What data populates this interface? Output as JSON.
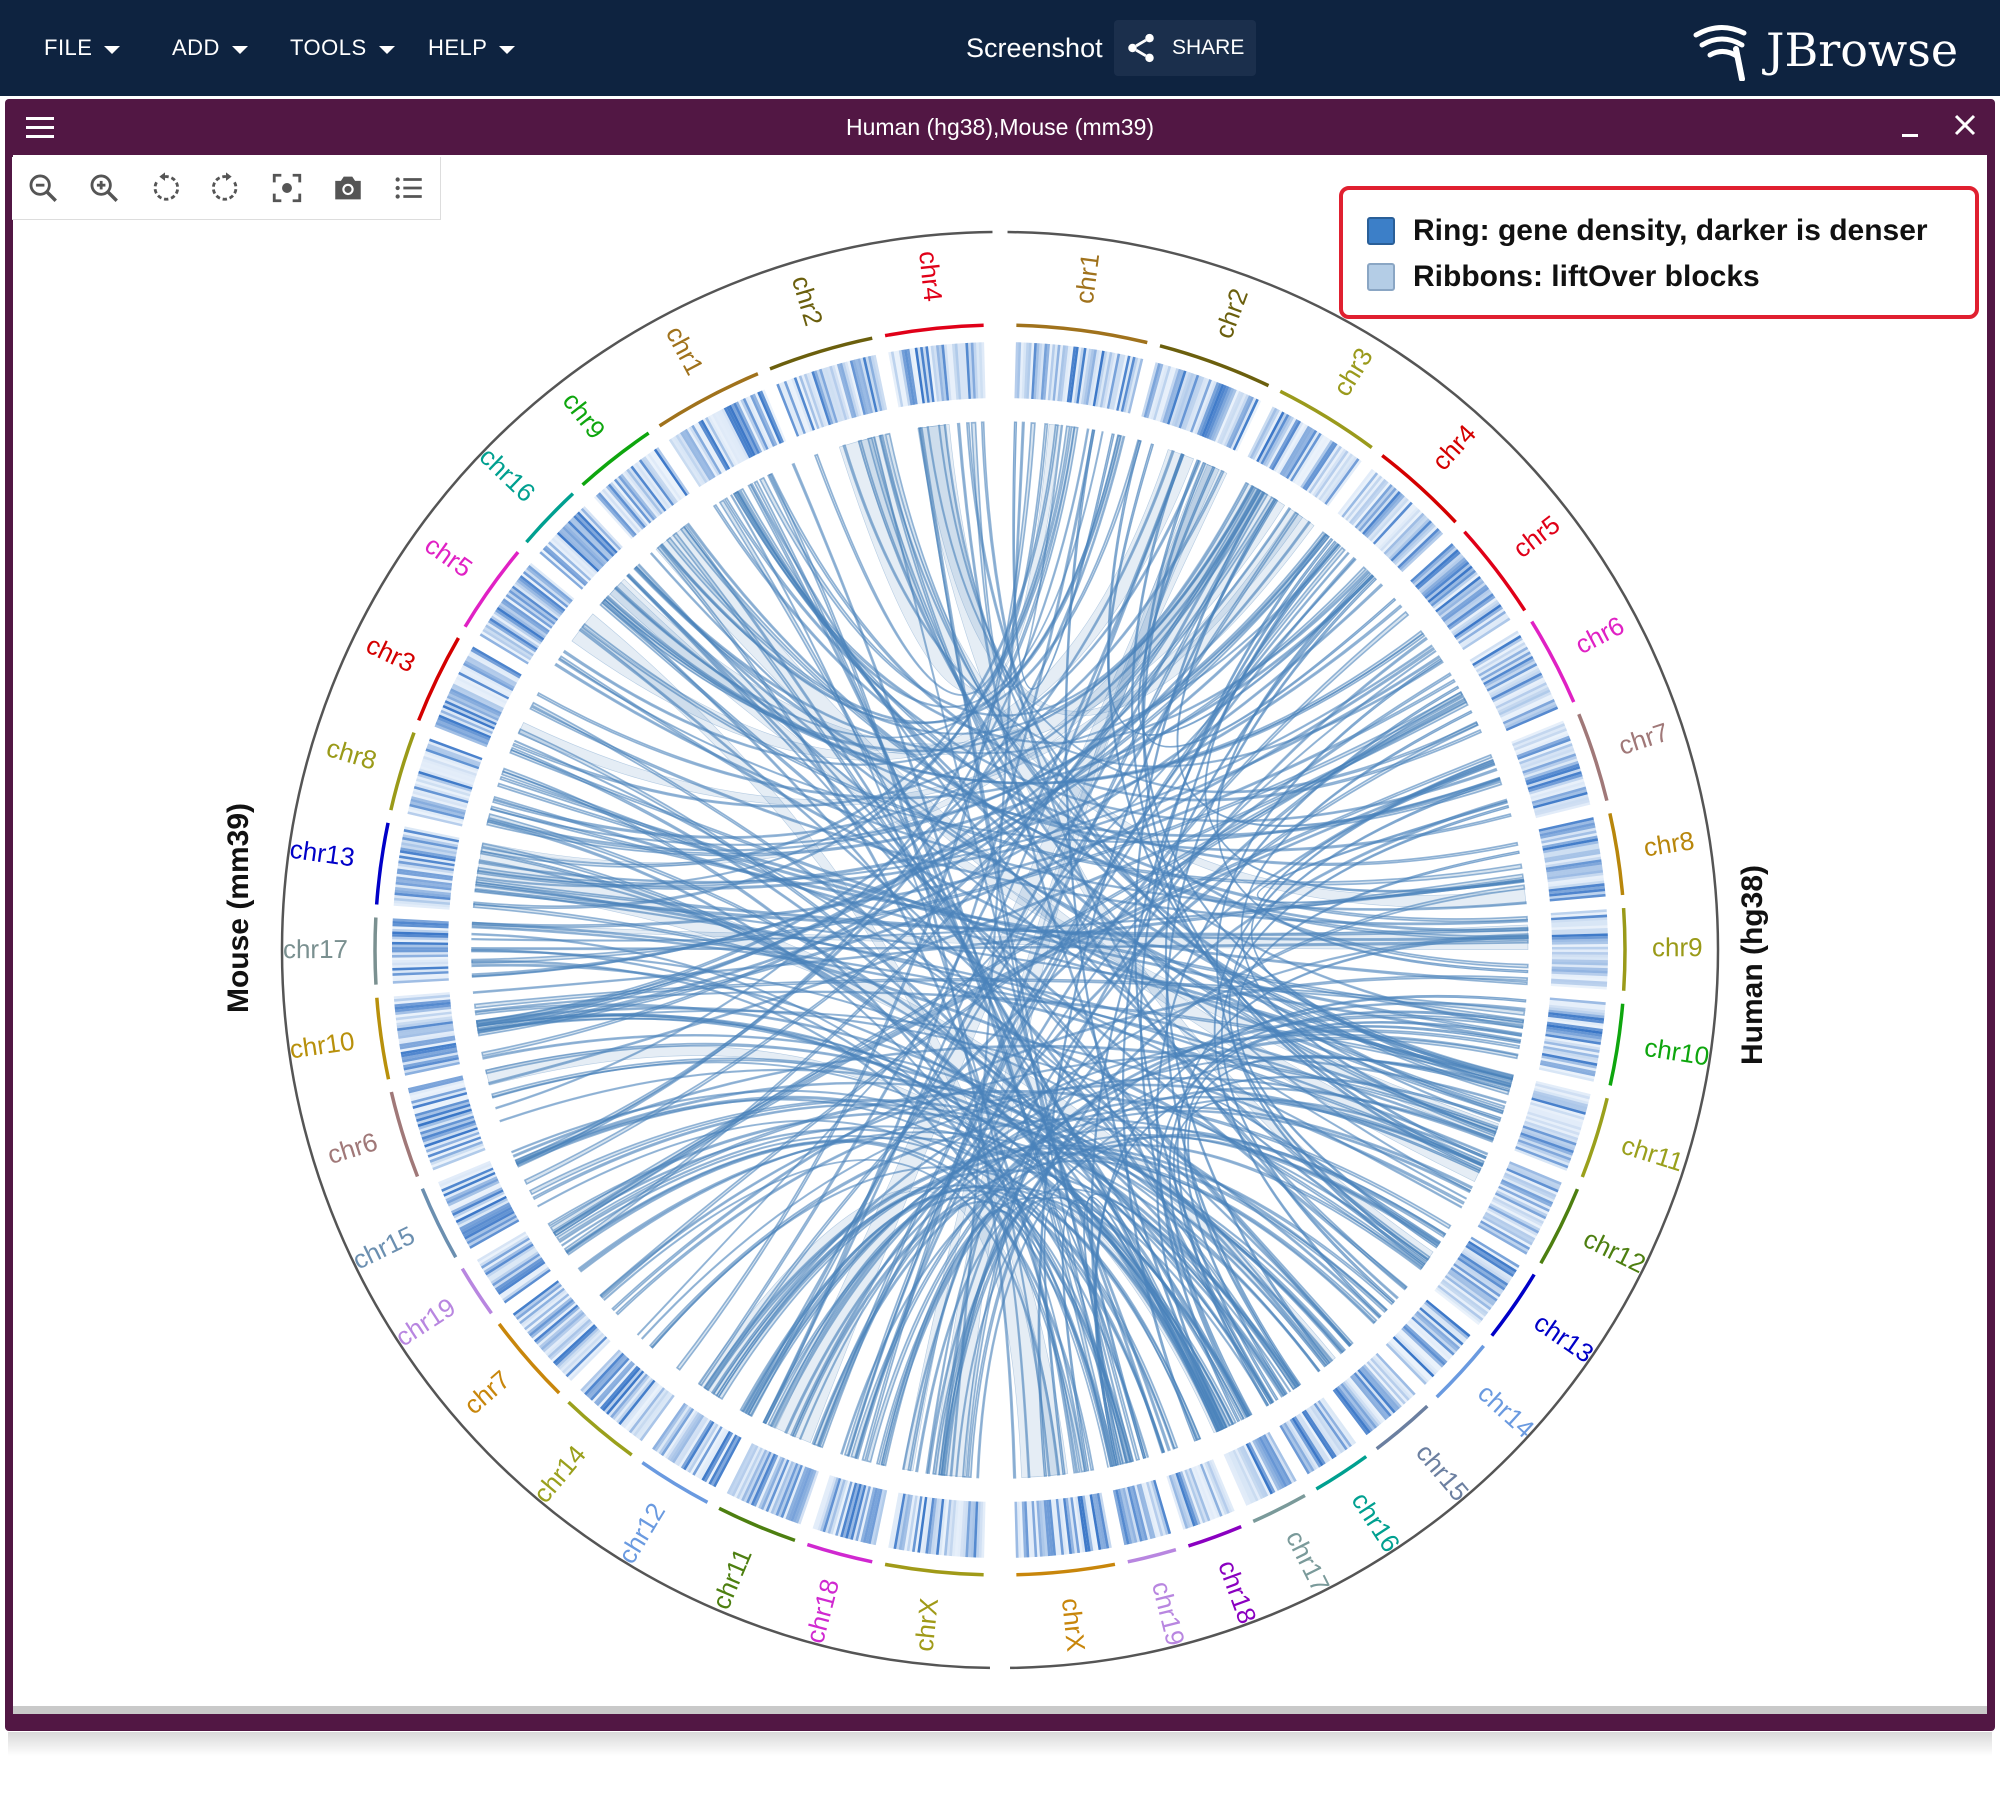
{
  "topbar": {
    "menus": [
      "FILE",
      "ADD",
      "TOOLS",
      "HELP"
    ],
    "session_name": "Screenshot",
    "share_label": "SHARE",
    "logo_text": "JBrowse",
    "background": "#0e2340"
  },
  "view": {
    "title": "Human (hg38),Mouse (mm39)",
    "header_color": "#521744",
    "toolbar_icons": [
      "zoom-out-icon",
      "zoom-in-icon",
      "rotate-ccw-icon",
      "rotate-cw-icon",
      "fit-icon",
      "camera-icon",
      "list-icon"
    ]
  },
  "legend": {
    "items": [
      {
        "label": "Ring: gene density, darker is denser",
        "color": "#3c7fc8"
      },
      {
        "label": "Ribbons: liftOver blocks",
        "color": "#b4cde6"
      }
    ],
    "border_color": "#e02030"
  },
  "circos": {
    "human_label": "Human (hg38)",
    "mouse_label": "Mouse (mm39)",
    "ribbon_color": "#4a82bb",
    "ring_color": "#2f6fc4",
    "human_chromosomes": [
      {
        "name": "chr1",
        "color": "#a0721c"
      },
      {
        "name": "chr2",
        "color": "#6b5f0d"
      },
      {
        "name": "chr3",
        "color": "#9a9a1c"
      },
      {
        "name": "chr4",
        "color": "#d40000"
      },
      {
        "name": "chr5",
        "color": "#e00018"
      },
      {
        "name": "chr6",
        "color": "#e021c4"
      },
      {
        "name": "chr7",
        "color": "#a07878"
      },
      {
        "name": "chr8",
        "color": "#b8860b"
      },
      {
        "name": "chr9",
        "color": "#9a9a18"
      },
      {
        "name": "chr10",
        "color": "#0ea60e"
      },
      {
        "name": "chr11",
        "color": "#9aa01c"
      },
      {
        "name": "chr12",
        "color": "#4d7f10"
      },
      {
        "name": "chr13",
        "color": "#0000c8"
      },
      {
        "name": "chr14",
        "color": "#6a9ae0"
      },
      {
        "name": "chr15",
        "color": "#6b7fa0"
      },
      {
        "name": "chr16",
        "color": "#00a090"
      },
      {
        "name": "chr17",
        "color": "#7a9a9a"
      },
      {
        "name": "chr18",
        "color": "#8a00c0"
      },
      {
        "name": "chr19",
        "color": "#b886e0"
      },
      {
        "name": "chrX",
        "color": "#c8860b"
      }
    ],
    "mouse_chromosomes": [
      {
        "name": "chrX",
        "color": "#a09a18"
      },
      {
        "name": "chr18",
        "color": "#d028d0"
      },
      {
        "name": "chr11",
        "color": "#4d7f10"
      },
      {
        "name": "chr12",
        "color": "#6a9ae0"
      },
      {
        "name": "chr14",
        "color": "#9aa01c"
      },
      {
        "name": "chr7",
        "color": "#c8860b"
      },
      {
        "name": "chr19",
        "color": "#b886e0"
      },
      {
        "name": "chr15",
        "color": "#6b8fb0"
      },
      {
        "name": "chr6",
        "color": "#a07878"
      },
      {
        "name": "chr10",
        "color": "#b8900b"
      },
      {
        "name": "chr17",
        "color": "#7a9090"
      },
      {
        "name": "chr13",
        "color": "#0000c8"
      },
      {
        "name": "chr8",
        "color": "#9a9a18"
      },
      {
        "name": "chr3",
        "color": "#d40000"
      },
      {
        "name": "chr5",
        "color": "#e021c4"
      },
      {
        "name": "chr16",
        "color": "#00a090"
      },
      {
        "name": "chr9",
        "color": "#0ea60e"
      },
      {
        "name": "chr1",
        "color": "#a0721c"
      },
      {
        "name": "chr2",
        "color": "#6b5f0d"
      },
      {
        "name": "chr4",
        "color": "#e00018"
      }
    ]
  }
}
